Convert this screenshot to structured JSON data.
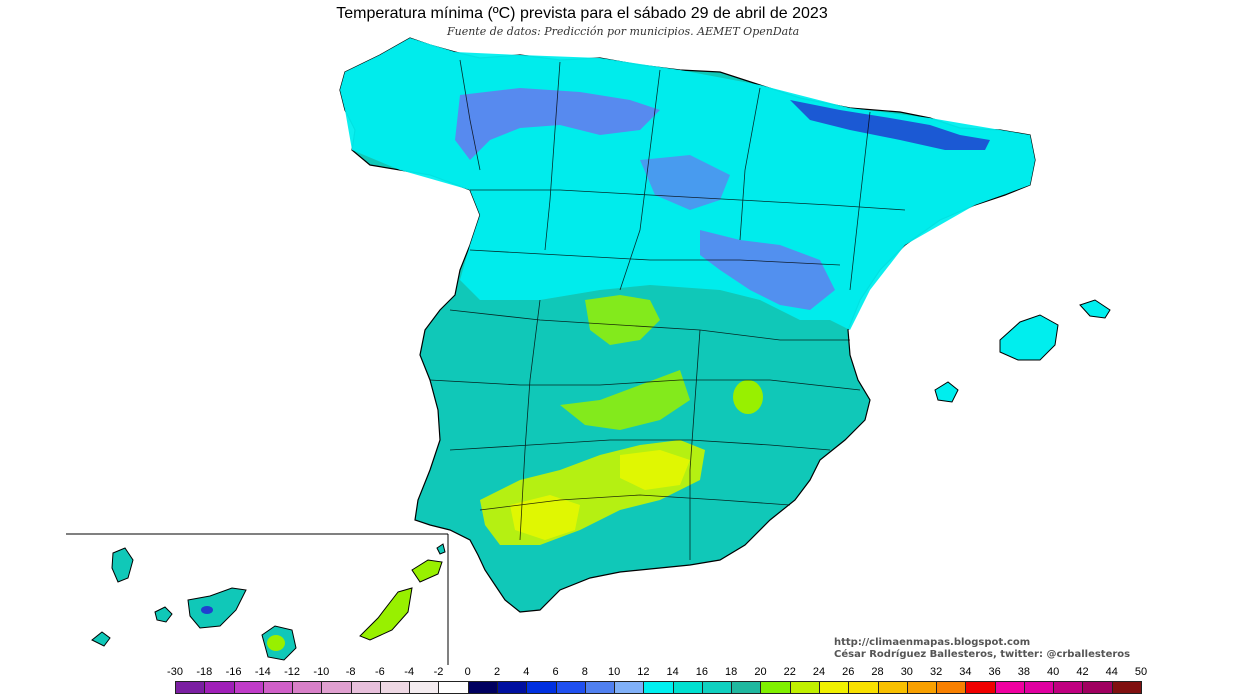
{
  "title": "Temperatura mínima (ºC) prevista para el sábado 29 de abril de 2023",
  "subtitle": "Fuente de datos: Predicción por municipios. AEMET OpenData",
  "credits": {
    "url": "http://climaenmapas.blogspot.com",
    "author": "César Rodríguez Ballesteros, twitter: @crballesteros"
  },
  "legend": {
    "ticks": [
      "-30",
      "-18",
      "-16",
      "-14",
      "-12",
      "-10",
      "-8",
      "-6",
      "-4",
      "-2",
      "0",
      "2",
      "4",
      "6",
      "8",
      "10",
      "12",
      "14",
      "16",
      "18",
      "20",
      "22",
      "24",
      "26",
      "28",
      "30",
      "32",
      "34",
      "36",
      "38",
      "40",
      "42",
      "44",
      "50"
    ],
    "colors": [
      "#7b1fa2",
      "#a020b8",
      "#c03cc8",
      "#d060c8",
      "#d880c8",
      "#e0a0d0",
      "#e8c0dc",
      "#eed8e4",
      "#f4ecf0",
      "#ffffff",
      "#000060",
      "#0010a0",
      "#0030e0",
      "#2050f0",
      "#5080f0",
      "#80b0f8",
      "#00f0f0",
      "#00e0d0",
      "#10d0c0",
      "#20b8a0",
      "#80f000",
      "#c0f000",
      "#f0f000",
      "#f8e000",
      "#f8c000",
      "#f8a000",
      "#f88000",
      "#f00000",
      "#f000a0",
      "#e000a0",
      "#c00080",
      "#a00060",
      "#801010"
    ]
  },
  "regions": {
    "colors": {
      "north_cold": "#6080f0",
      "north_colder": "#2040d0",
      "coastal": "#00eeee",
      "interior": "#10c8b8",
      "south_warm": "#98f000",
      "south_hot": "#e0f800"
    }
  }
}
